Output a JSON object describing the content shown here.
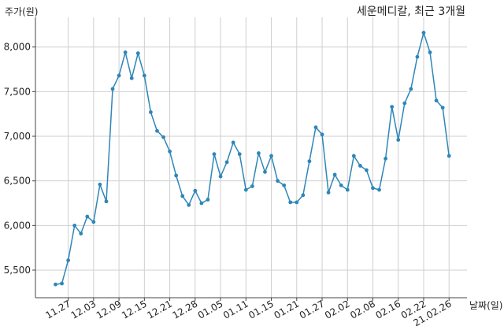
{
  "chart_data": {
    "type": "line",
    "title": "세운메디칼, 최근 3개월",
    "ylabel": "주가(원)",
    "xlabel": "날짜(일)",
    "ylim": [
      5200,
      8450
    ],
    "yticks": [
      5500,
      6000,
      6500,
      7000,
      7500,
      8000
    ],
    "ytick_labels": [
      "5,500",
      "6,000",
      "6,500",
      "7,000",
      "7,500",
      "8,000"
    ],
    "xtick_positions": [
      2,
      6,
      10,
      14,
      18,
      22,
      26,
      30,
      34,
      38,
      42,
      46,
      50,
      54,
      58,
      62
    ],
    "xtick_labels": [
      "11.27",
      "12.03",
      "12.09",
      "12.15",
      "12.21",
      "12.28",
      "01.05",
      "01.11",
      "01.15",
      "01.21",
      "01.27",
      "02.02",
      "02.08",
      "02.16",
      "02.22",
      "21.02.26"
    ],
    "grid": true,
    "line_color": "#2e86b8",
    "series": [
      {
        "values": [
          5340,
          5350,
          5610,
          6000,
          5910,
          6100,
          6040,
          6460,
          6270,
          7530,
          7680,
          7940,
          7650,
          7930,
          7680,
          7270,
          7060,
          6990,
          6830,
          6560,
          6330,
          6230,
          6390,
          6250,
          6290,
          6800,
          6550,
          6710,
          6930,
          6800,
          6400,
          6440,
          6810,
          6600,
          6780,
          6500,
          6450,
          6260,
          6260,
          6340,
          6720,
          7100,
          7020,
          6370,
          6570,
          6450,
          6400,
          6780,
          6670,
          6620,
          6420,
          6400,
          6750,
          7330,
          6960,
          7370,
          7530,
          7890,
          8160,
          7940,
          7400,
          7320,
          6780
        ]
      }
    ]
  }
}
